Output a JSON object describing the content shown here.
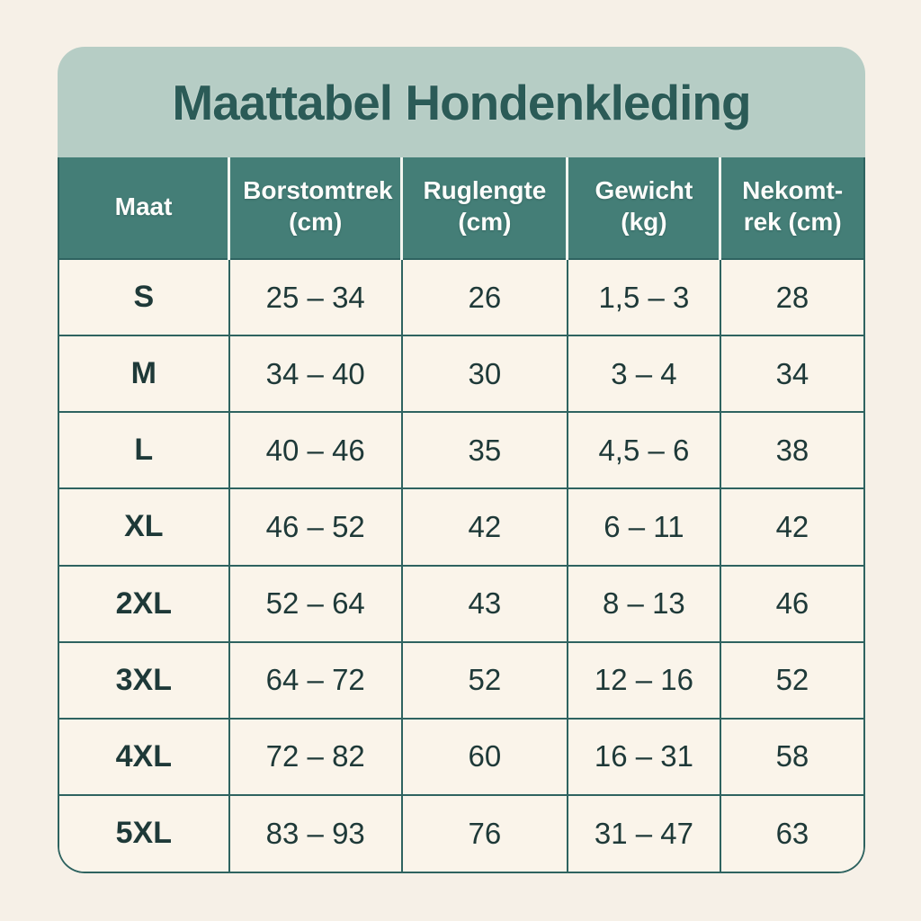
{
  "title": "Maattabel Hondenkleding",
  "colors": {
    "page-bg": "#F6F0E7",
    "band-bg": "#B6CDC5",
    "title-color": "#2B5B57",
    "header-bg": "#447E77",
    "header-text": "#FDFDFB",
    "body-bg": "#FAF4EA",
    "body-text": "#1E3938",
    "border-color": "#2E6360"
  },
  "table": {
    "headers": [
      "Maat",
      "Borstomtrek (cm)",
      "Ruglengte (cm)",
      "Gewicht (kg)",
      "Nekomt-rek (cm)"
    ],
    "rows": [
      [
        "S",
        "25 – 34",
        "26",
        "1,5 – 3",
        "28"
      ],
      [
        "M",
        "34 – 40",
        "30",
        "3 – 4",
        "34"
      ],
      [
        "L",
        "40 – 46",
        "35",
        "4,5 – 6",
        "38"
      ],
      [
        "XL",
        "46 – 52",
        "42",
        "6 – 11",
        "42"
      ],
      [
        "2XL",
        "52 – 64",
        "43",
        "8 – 13",
        "46"
      ],
      [
        "3XL",
        "64 – 72",
        "52",
        "12 – 16",
        "52"
      ],
      [
        "4XL",
        "72 – 82",
        "60",
        "16 – 31",
        "58"
      ],
      [
        "5XL",
        "83 – 93",
        "76",
        "31 – 47",
        "63"
      ]
    ]
  }
}
